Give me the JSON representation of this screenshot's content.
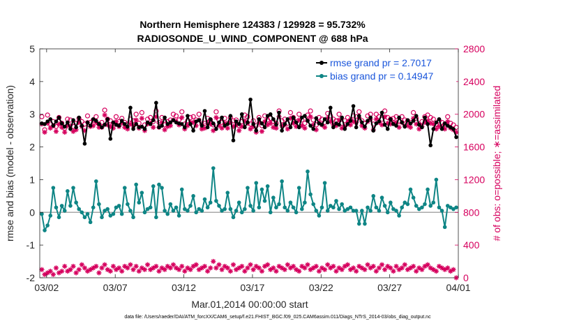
{
  "chart_data": {
    "type": "line",
    "title": "Northern Hemisphere 124383 / 129928 = 95.732%",
    "subtitle": "RADIOSONDE_U_WIND_COMPONENT @ 688 hPa",
    "xlabel": "Mar.01,2014 00:00:00 start",
    "ylabel_left": "rmse and bias (model - observation)",
    "ylabel_right": "# of obs: o=possible; ∗=assimilated",
    "footer": "data file: /Users/raeder/DAI/ATM_forcXX/CAM6_setup/f.e21.FHIST_BGC.f09_025.CAM6assim.011/Diags_NTrS_2014-03/obs_diag_output.nc",
    "xlim": [
      0.5,
      31.0
    ],
    "ylim_left": [
      -2,
      5
    ],
    "ylim_right": [
      0,
      2800
    ],
    "x_ticks": [
      1,
      6,
      11,
      16,
      21,
      26,
      31
    ],
    "x_tick_labels": [
      "03/02",
      "03/07",
      "03/12",
      "03/17",
      "03/22",
      "03/27",
      "04/01"
    ],
    "y_ticks_left": [
      -2,
      -1,
      0,
      1,
      2,
      3,
      4,
      5
    ],
    "y_tick_labels_left": [
      "-2",
      "-1",
      "0",
      "1",
      "2",
      "3",
      "4",
      "5"
    ],
    "y_ticks_right": [
      0,
      400,
      800,
      1200,
      1600,
      2000,
      2400,
      2800
    ],
    "y_tick_labels_right": [
      "0",
      "400",
      "800",
      "1200",
      "1600",
      "2000",
      "2400",
      "2800"
    ],
    "grid": false,
    "legend_position": "top-right",
    "colors": {
      "rmse": "#000000",
      "bias": "#0e8585",
      "obs": "#d6005e",
      "zero_line": "#a8a8a8"
    },
    "series": [
      {
        "name": "rmse grand pr = 2.7017",
        "axis": "left",
        "marker": "filled-circle",
        "values": [
          2.72,
          2.7,
          2.78,
          2.85,
          2.65,
          2.78,
          2.9,
          2.72,
          2.62,
          2.75,
          2.55,
          2.82,
          2.6,
          2.9,
          2.65,
          2.1,
          2.75,
          2.65,
          2.85,
          2.8,
          2.7,
          2.6,
          2.68,
          2.85,
          2.25,
          2.75,
          2.68,
          2.65,
          2.8,
          2.7,
          2.62,
          3.2,
          2.55,
          2.7,
          2.6,
          2.62,
          2.55,
          2.75,
          2.7,
          2.82,
          3.35,
          2.6,
          2.65,
          2.9,
          2.7,
          2.75,
          2.82,
          2.75,
          2.72,
          2.7,
          2.6,
          2.95,
          2.7,
          2.5,
          2.78,
          2.82,
          2.65,
          3.1,
          2.6,
          2.85,
          2.72,
          2.55,
          2.75,
          2.9,
          2.65,
          2.7,
          2.95,
          2.2,
          2.78,
          2.7,
          3.0,
          2.6,
          2.75,
          3.45,
          2.7,
          2.5,
          2.85,
          2.72,
          2.6,
          2.95,
          3.0,
          2.85,
          2.68,
          3.05,
          2.5,
          2.7,
          2.85,
          2.6,
          2.9,
          2.75,
          2.6,
          2.9,
          2.95,
          2.8,
          2.65,
          2.55,
          2.88,
          2.72,
          2.68,
          2.85,
          2.75,
          3.2,
          2.6,
          2.72,
          2.68,
          2.9,
          2.55,
          2.7,
          2.8,
          3.25,
          2.6,
          2.95,
          2.75,
          2.62,
          2.8,
          2.9,
          2.5,
          2.72,
          2.78,
          3.05,
          2.68,
          2.55,
          2.85,
          2.7,
          2.65,
          2.9,
          2.75,
          2.62,
          2.82,
          2.72,
          2.8,
          2.95,
          2.68,
          2.6,
          2.9,
          2.7,
          2.05,
          2.55,
          2.75,
          2.85,
          2.55,
          2.72,
          2.65,
          2.6,
          2.55,
          2.3
        ]
      },
      {
        "name": "bias grand pr = 0.14947",
        "axis": "left",
        "marker": "filled-circle",
        "values": [
          -0.05,
          -0.55,
          -0.4,
          -0.1,
          0.75,
          0.15,
          -0.15,
          0.2,
          0.05,
          0.65,
          0.2,
          0.75,
          0.3,
          0.1,
          0.0,
          -0.15,
          -0.05,
          -0.3,
          0.15,
          0.95,
          0.25,
          -0.15,
          0.05,
          0.1,
          -0.1,
          -0.05,
          0.15,
          0.2,
          -0.05,
          0.75,
          0.25,
          0.05,
          -0.15,
          0.85,
          0.3,
          0.6,
          0.0,
          0.1,
          0.15,
          0.8,
          -0.15,
          0.85,
          0.75,
          0.05,
          -0.05,
          0.25,
          0.05,
          0.15,
          -0.1,
          0.7,
          0.1,
          0.05,
          0.2,
          0.5,
          0.0,
          0.1,
          0.05,
          0.4,
          0.15,
          0.3,
          1.35,
          0.35,
          0.2,
          0.05,
          0.1,
          0.6,
          0.1,
          -0.15,
          0.05,
          0.3,
          0.0,
          0.1,
          0.75,
          0.2,
          0.05,
          0.9,
          0.15,
          0.7,
          0.35,
          0.8,
          0.0,
          0.45,
          0.15,
          0.25,
          0.95,
          0.15,
          0.05,
          0.3,
          0.15,
          0.0,
          0.75,
          0.1,
          0.3,
          1.25,
          0.55,
          0.25,
          0.05,
          -0.1,
          0.15,
          0.9,
          0.05,
          0.2,
          0.15,
          0.35,
          0.1,
          0.25,
          0.05,
          0.1,
          0.15,
          0.05,
          0.05,
          -0.35,
          0.05,
          -0.35,
          0.15,
          0.05,
          0.5,
          0.15,
          0.05,
          0.45,
          0.2,
          0.0,
          0.3,
          0.1,
          0.05,
          -0.1,
          0.15,
          0.3,
          0.25,
          0.7,
          0.45,
          0.2,
          0.1,
          0.15,
          0.25,
          0.7,
          0.2,
          0.3,
          1.0,
          0.15,
          0.05,
          -0.45,
          0.2,
          0.15,
          0.1,
          0.15
        ]
      },
      {
        "name": "possible",
        "axis": "right",
        "marker": "open-circle",
        "values": [
          1970,
          1810,
          1990,
          1880,
          1910,
          1850,
          1960,
          1890,
          1830,
          1940,
          1930,
          1850,
          1890,
          1950,
          1910,
          1880,
          1980,
          1900,
          1930,
          1970,
          1880,
          1900,
          2050,
          1940,
          1920,
          1890,
          1970,
          1910,
          1950,
          1900,
          1880,
          1940,
          1920,
          2000,
          1890,
          2020,
          1870,
          1940,
          1960,
          1910,
          2040,
          1900,
          1960,
          1870,
          1910,
          1930,
          2000,
          1980,
          1930,
          2030,
          1880,
          1920,
          1960,
          1970,
          1930,
          2000,
          1880,
          1890,
          1950,
          1930,
          1870,
          2030,
          1930,
          1900,
          1950,
          1890,
          1960,
          1920,
          1930,
          1860,
          1910,
          1990,
          1970,
          1880,
          1920,
          1860,
          1960,
          1860,
          1980,
          1930,
          1950,
          1910,
          1890,
          2040,
          1920,
          1940,
          1890,
          2020,
          1960,
          1910,
          2000,
          1930,
          1890,
          1990,
          2040,
          1930,
          1870,
          1960,
          1940,
          1900,
          2010,
          1980,
          1940,
          1920,
          2000,
          1890,
          1920,
          1960,
          1930,
          1980,
          1970,
          2030,
          1920,
          1890,
          1980,
          2000,
          1880,
          2000,
          1970,
          1940,
          2040,
          1960,
          1940,
          1950,
          1970,
          1910,
          1970,
          1930,
          1920,
          1900,
          2020,
          1950,
          1880,
          1910,
          1970,
          1990,
          1960,
          1940,
          1880,
          1920,
          1900,
          1880,
          1970,
          1890,
          1870,
          1840
        ]
      },
      {
        "name": "assimilated",
        "axis": "right",
        "marker": "asterisk",
        "values": [
          1880,
          1780,
          1890,
          1830,
          1860,
          1790,
          1880,
          1840,
          1780,
          1860,
          1860,
          1790,
          1810,
          1900,
          1850,
          1800,
          1900,
          1850,
          1860,
          1900,
          1840,
          1840,
          1990,
          1870,
          1850,
          1830,
          1910,
          1850,
          1890,
          1840,
          1820,
          1880,
          1860,
          1930,
          1830,
          1950,
          1800,
          1880,
          1890,
          1840,
          1970,
          1840,
          1900,
          1810,
          1850,
          1860,
          1930,
          1910,
          1870,
          1960,
          1820,
          1860,
          1900,
          1900,
          1860,
          1930,
          1820,
          1830,
          1890,
          1880,
          1800,
          1960,
          1860,
          1830,
          1890,
          1830,
          1900,
          1850,
          1870,
          1800,
          1850,
          1920,
          1890,
          1820,
          1850,
          1780,
          1900,
          1790,
          1910,
          1870,
          1890,
          1840,
          1830,
          1970,
          1860,
          1870,
          1820,
          1950,
          1890,
          1850,
          1930,
          1860,
          1830,
          1930,
          1970,
          1870,
          1810,
          1900,
          1870,
          1840,
          1950,
          1910,
          1870,
          1860,
          1930,
          1830,
          1850,
          1900,
          1870,
          1910,
          1900,
          1960,
          1860,
          1830,
          1910,
          1940,
          1810,
          1940,
          1900,
          1870,
          1970,
          1890,
          1880,
          1890,
          1900,
          1840,
          1900,
          1860,
          1860,
          1840,
          1950,
          1880,
          1820,
          1850,
          1900,
          1920,
          1890,
          1880,
          1820,
          1850,
          1840,
          1820,
          1910,
          1830,
          1810,
          1780
        ]
      },
      {
        "name": "assimilated-low",
        "axis": "left",
        "marker": "asterisk",
        "values": [
          -1.75,
          -1.9,
          -1.85,
          -1.8,
          -1.9,
          -1.7,
          -1.85,
          -1.8,
          -1.65,
          -1.8,
          -1.75,
          -1.65,
          -1.85,
          -1.75,
          -1.6,
          -1.7,
          -1.8,
          -1.75,
          -1.7,
          -1.65,
          -1.85,
          -1.7,
          -1.6,
          -1.75,
          -1.8,
          -1.65,
          -1.75,
          -1.7,
          -1.8,
          -1.65,
          -1.7,
          -1.6,
          -1.75,
          -1.65,
          -1.8,
          -1.7,
          -1.75,
          -1.6,
          -1.75,
          -1.7,
          -1.65,
          -1.8,
          -1.7,
          -1.75,
          -1.65,
          -1.7,
          -1.6,
          -1.7,
          -1.75,
          -1.65,
          -1.8,
          -1.7,
          -1.75,
          -1.65,
          -1.6,
          -1.75,
          -1.7,
          -1.65,
          -1.8,
          -1.7,
          -1.5,
          -1.7,
          -1.6,
          -1.75,
          -1.65,
          -1.7,
          -1.8,
          -1.6,
          -1.75,
          -1.7,
          -1.65,
          -1.8,
          -1.7,
          -1.6,
          -1.75,
          -1.65,
          -1.7,
          -1.8,
          -1.65,
          -1.6,
          -1.75,
          -1.7,
          -1.8,
          -1.65,
          -1.7,
          -1.75,
          -1.6,
          -1.7,
          -1.65,
          -1.75,
          -1.8,
          -1.65,
          -1.7,
          -1.6,
          -1.75,
          -1.7,
          -1.65,
          -1.8,
          -1.7,
          -1.75,
          -1.6,
          -1.7,
          -1.65,
          -1.8,
          -1.7,
          -1.75,
          -1.65,
          -1.6,
          -1.75,
          -1.7,
          -1.8,
          -1.65,
          -1.7,
          -1.75,
          -1.6,
          -1.7,
          -1.65,
          -1.8,
          -1.7,
          -1.6,
          -1.75,
          -1.65,
          -1.7,
          -1.8,
          -1.65,
          -1.75,
          -1.7,
          -1.6,
          -1.75,
          -1.7,
          -1.65,
          -1.8,
          -1.7,
          -1.75,
          -1.65,
          -1.6,
          -1.7,
          -1.75,
          -1.8,
          -1.65,
          -1.7,
          -1.75,
          -1.7,
          -1.8,
          -1.75,
          -2.0
        ]
      }
    ]
  }
}
